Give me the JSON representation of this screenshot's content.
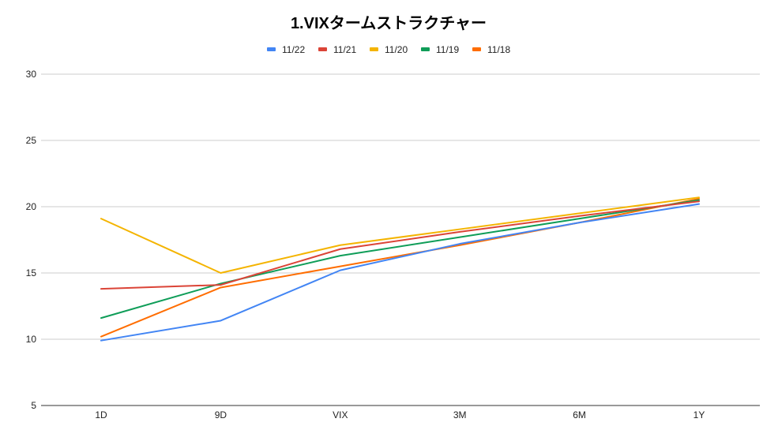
{
  "chart_data": {
    "type": "line",
    "title": "1.VIXタームストラクチャー",
    "xlabel": "",
    "ylabel": "",
    "categories": [
      "1D",
      "9D",
      "VIX",
      "3M",
      "6M",
      "1Y"
    ],
    "ylim": [
      5,
      30
    ],
    "yticks": [
      5,
      10,
      15,
      20,
      25,
      30
    ],
    "grid": true,
    "legend_position": "top",
    "series": [
      {
        "name": "11/22",
        "color": "#4285f4",
        "values": [
          9.9,
          11.4,
          15.2,
          17.2,
          18.8,
          20.2
        ]
      },
      {
        "name": "11/21",
        "color": "#db4437",
        "values": [
          13.8,
          14.1,
          16.8,
          18.1,
          19.3,
          20.4
        ]
      },
      {
        "name": "11/20",
        "color": "#f4b400",
        "values": [
          19.1,
          15.0,
          17.1,
          18.3,
          19.5,
          20.7
        ]
      },
      {
        "name": "11/19",
        "color": "#0f9d58",
        "values": [
          11.6,
          14.2,
          16.3,
          17.7,
          19.1,
          20.5
        ]
      },
      {
        "name": "11/18",
        "color": "#ff6d00",
        "values": [
          10.2,
          13.9,
          15.5,
          17.1,
          18.8,
          20.6
        ]
      }
    ]
  }
}
